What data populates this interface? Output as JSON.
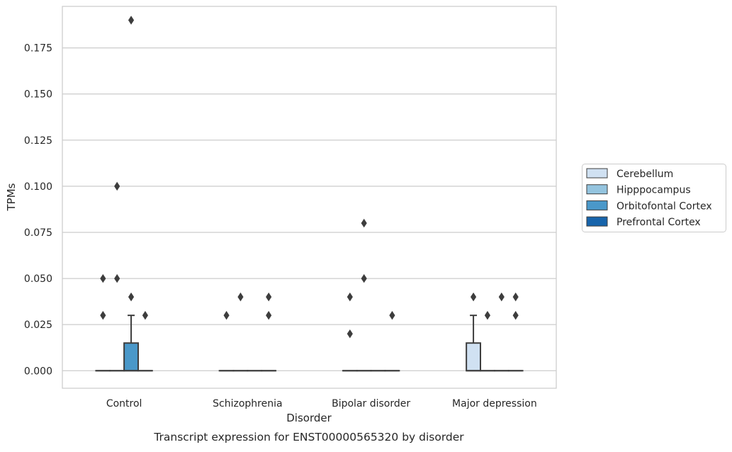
{
  "chart_data": {
    "type": "box",
    "title": "Transcript expression for ENST00000565320 by disorder",
    "xlabel": "Disorder",
    "ylabel": "TPMs",
    "ylim": [
      -0.0095,
      0.1975
    ],
    "yticks": [
      "0.000",
      "0.025",
      "0.050",
      "0.075",
      "0.100",
      "0.125",
      "0.150",
      "0.175"
    ],
    "ytick_values": [
      0,
      0.025,
      0.05,
      0.075,
      0.1,
      0.125,
      0.15,
      0.175
    ],
    "grid": true,
    "legend_position": "right",
    "categories": [
      "Control",
      "Schizophrenia",
      "Bipolar disorder",
      "Major depression"
    ],
    "series": [
      {
        "name": "Cerebellum",
        "color": "#d0e1f2",
        "boxes": [
          {
            "category": "Control",
            "q1": 0,
            "median": 0,
            "q3": 0,
            "whisker_low": 0,
            "whisker_high": 0,
            "outliers": [
              0.03,
              0.05
            ]
          },
          {
            "category": "Schizophrenia",
            "q1": 0,
            "median": 0,
            "q3": 0,
            "whisker_low": 0,
            "whisker_high": 0,
            "outliers": [
              0.03
            ]
          },
          {
            "category": "Bipolar disorder",
            "q1": 0,
            "median": 0,
            "q3": 0,
            "whisker_low": 0,
            "whisker_high": 0,
            "outliers": [
              0.02,
              0.04
            ]
          },
          {
            "category": "Major depression",
            "q1": 0,
            "median": 0,
            "q3": 0.015,
            "whisker_low": 0,
            "whisker_high": 0.03,
            "outliers": [
              0.04
            ]
          }
        ]
      },
      {
        "name": "Hipppocampus",
        "color": "#94c4df",
        "boxes": [
          {
            "category": "Control",
            "q1": 0,
            "median": 0,
            "q3": 0,
            "whisker_low": 0,
            "whisker_high": 0,
            "outliers": [
              0.05,
              0.1
            ]
          },
          {
            "category": "Schizophrenia",
            "q1": 0,
            "median": 0,
            "q3": 0,
            "whisker_low": 0,
            "whisker_high": 0,
            "outliers": [
              0.04
            ]
          },
          {
            "category": "Bipolar disorder",
            "q1": 0,
            "median": 0,
            "q3": 0,
            "whisker_low": 0,
            "whisker_high": 0,
            "outliers": [
              0.05,
              0.08
            ]
          },
          {
            "category": "Major depression",
            "q1": 0,
            "median": 0,
            "q3": 0,
            "whisker_low": 0,
            "whisker_high": 0,
            "outliers": [
              0.03
            ]
          }
        ]
      },
      {
        "name": "Orbitofontal Cortex",
        "color": "#4a98c9",
        "boxes": [
          {
            "category": "Control",
            "q1": 0,
            "median": 0,
            "q3": 0.015,
            "whisker_low": 0,
            "whisker_high": 0.03,
            "outliers": [
              0.04,
              0.19
            ]
          },
          {
            "category": "Schizophrenia",
            "q1": 0,
            "median": 0,
            "q3": 0,
            "whisker_low": 0,
            "whisker_high": 0,
            "outliers": []
          },
          {
            "category": "Bipolar disorder",
            "q1": 0,
            "median": 0,
            "q3": 0,
            "whisker_low": 0,
            "whisker_high": 0,
            "outliers": []
          },
          {
            "category": "Major depression",
            "q1": 0,
            "median": 0,
            "q3": 0,
            "whisker_low": 0,
            "whisker_high": 0,
            "outliers": [
              0.04
            ]
          }
        ]
      },
      {
        "name": "Prefrontal Cortex",
        "color": "#1764ab",
        "boxes": [
          {
            "category": "Control",
            "q1": 0,
            "median": 0,
            "q3": 0,
            "whisker_low": 0,
            "whisker_high": 0,
            "outliers": [
              0.03
            ]
          },
          {
            "category": "Schizophrenia",
            "q1": 0,
            "median": 0,
            "q3": 0,
            "whisker_low": 0,
            "whisker_high": 0,
            "outliers": [
              0.03,
              0.04
            ]
          },
          {
            "category": "Bipolar disorder",
            "q1": 0,
            "median": 0,
            "q3": 0,
            "whisker_low": 0,
            "whisker_high": 0,
            "outliers": [
              0.03
            ]
          },
          {
            "category": "Major depression",
            "q1": 0,
            "median": 0,
            "q3": 0,
            "whisker_low": 0,
            "whisker_high": 0,
            "outliers": [
              0.03,
              0.04
            ]
          }
        ]
      }
    ]
  }
}
